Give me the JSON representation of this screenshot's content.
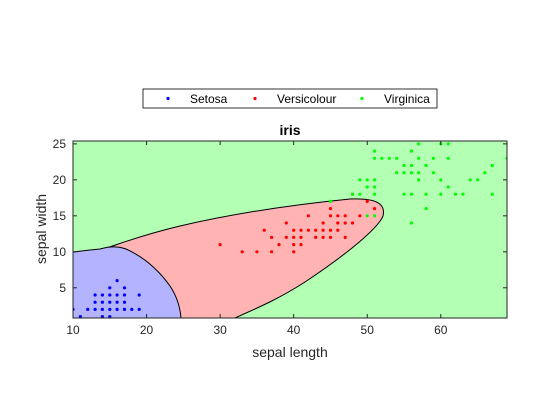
{
  "chart_data": {
    "type": "scatter",
    "title": "iris",
    "xlabel": "sepal length",
    "ylabel": "sepal width",
    "xlim": [
      10,
      69
    ],
    "ylim": [
      0.8,
      25.4
    ],
    "xticks": [
      10,
      20,
      30,
      40,
      50,
      60
    ],
    "yticks": [
      5,
      10,
      15,
      20,
      25
    ],
    "grid": false,
    "legend_position": "top-center, above axes, horizontal",
    "background_regions": [
      {
        "class": "Setosa",
        "color": "#b3b3ff"
      },
      {
        "class": "Versicolour",
        "color": "#ffb3b3"
      },
      {
        "class": "Virginica",
        "color": "#b3ffb3"
      }
    ],
    "series": [
      {
        "name": "Setosa",
        "color": "#0000ff",
        "points": [
          [
            10,
            2
          ],
          [
            11,
            1
          ],
          [
            12,
            2
          ],
          [
            13,
            2
          ],
          [
            13,
            3
          ],
          [
            13,
            4
          ],
          [
            14,
            1
          ],
          [
            14,
            2
          ],
          [
            14,
            3
          ],
          [
            14,
            4
          ],
          [
            15,
            1
          ],
          [
            15,
            2
          ],
          [
            15,
            3
          ],
          [
            15,
            4
          ],
          [
            15,
            5
          ],
          [
            16,
            2
          ],
          [
            16,
            3
          ],
          [
            16,
            4
          ],
          [
            16,
            6
          ],
          [
            17,
            2
          ],
          [
            17,
            3
          ],
          [
            17,
            4
          ],
          [
            17,
            5
          ],
          [
            18,
            2
          ],
          [
            19,
            2
          ],
          [
            19,
            4
          ]
        ]
      },
      {
        "name": "Versicolour",
        "color": "#ff0000",
        "points": [
          [
            30,
            11
          ],
          [
            33,
            10
          ],
          [
            35,
            10
          ],
          [
            36,
            13
          ],
          [
            37,
            10
          ],
          [
            37,
            12
          ],
          [
            38,
            11
          ],
          [
            39,
            12
          ],
          [
            39,
            14
          ],
          [
            40,
            10
          ],
          [
            40,
            11
          ],
          [
            40,
            12
          ],
          [
            40,
            13
          ],
          [
            41,
            11
          ],
          [
            41,
            12
          ],
          [
            41,
            13
          ],
          [
            42,
            13
          ],
          [
            42,
            15
          ],
          [
            43,
            12
          ],
          [
            43,
            13
          ],
          [
            44,
            12
          ],
          [
            44,
            13
          ],
          [
            44,
            14
          ],
          [
            45,
            12
          ],
          [
            45,
            13
          ],
          [
            45,
            15
          ],
          [
            45,
            16
          ],
          [
            46,
            13
          ],
          [
            46,
            14
          ],
          [
            46,
            15
          ],
          [
            47,
            12
          ],
          [
            47,
            14
          ],
          [
            47,
            15
          ],
          [
            48,
            14
          ],
          [
            48,
            18
          ],
          [
            49,
            15
          ],
          [
            50,
            17
          ],
          [
            51,
            16
          ]
        ]
      },
      {
        "name": "Virginica",
        "color": "#00ff00",
        "points": [
          [
            45,
            17
          ],
          [
            48,
            18
          ],
          [
            49,
            18
          ],
          [
            49,
            20
          ],
          [
            50,
            15
          ],
          [
            50,
            19
          ],
          [
            50,
            20
          ],
          [
            51,
            15
          ],
          [
            51,
            18
          ],
          [
            51,
            19
          ],
          [
            51,
            20
          ],
          [
            51,
            23
          ],
          [
            51,
            24
          ],
          [
            52,
            23
          ],
          [
            53,
            23
          ],
          [
            54,
            21
          ],
          [
            54,
            23
          ],
          [
            55,
            18
          ],
          [
            55,
            21
          ],
          [
            55,
            22
          ],
          [
            56,
            14
          ],
          [
            56,
            18
          ],
          [
            56,
            21
          ],
          [
            56,
            22
          ],
          [
            56,
            24
          ],
          [
            57,
            21
          ],
          [
            57,
            23
          ],
          [
            57,
            25
          ],
          [
            58,
            18
          ],
          [
            58,
            22
          ],
          [
            59,
            21
          ],
          [
            59,
            23
          ],
          [
            60,
            18
          ],
          [
            60,
            25
          ],
          [
            61,
            19
          ],
          [
            61,
            23
          ],
          [
            61,
            25
          ],
          [
            62,
            18
          ],
          [
            63,
            18
          ],
          [
            64,
            20
          ],
          [
            65,
            20
          ],
          [
            66,
            21
          ],
          [
            67,
            18
          ],
          [
            67,
            22
          ],
          [
            69,
            23
          ],
          [
            58,
            16
          ],
          [
            60,
            20
          ],
          [
            57,
            20
          ]
        ]
      }
    ]
  }
}
